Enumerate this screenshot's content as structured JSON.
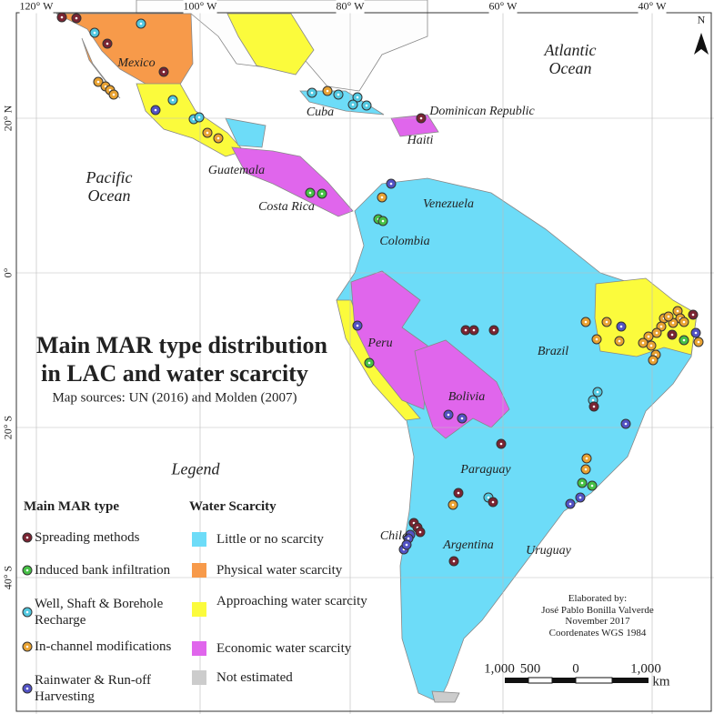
{
  "map": {
    "north": "N",
    "graticule_top": [
      "120° W",
      "100° W",
      "80° W",
      "60° W",
      "40° W"
    ],
    "graticule_left": [
      "20° N",
      "0°",
      "20° S",
      "40° S"
    ],
    "oceans": [
      "Atlantic Ocean",
      "Pacific Ocean"
    ],
    "places": [
      "Mexico",
      "Cuba",
      "Dominican Republic",
      "Haiti",
      "Guatemala",
      "Costa Rica",
      "Venezuela",
      "Colombia",
      "Peru",
      "Brazil",
      "Bolivia",
      "Paraguay",
      "Chile",
      "Argentina",
      "Uruguay"
    ]
  },
  "title": {
    "lines": [
      "Main MAR type distribution",
      "in LAC and water scarcity"
    ],
    "subtitle": "Map sources: UN (2016) and Molden (2007)"
  },
  "legend": {
    "title": "Legend",
    "mar_heading": "Main MAR type",
    "mar_types": [
      {
        "label": "Spreading methods",
        "color": "#7a2432"
      },
      {
        "label": "Induced bank infiltration",
        "color": "#46c046"
      },
      {
        "label": "Well, Shaft & Borehole Recharge",
        "color": "#52c8e0"
      },
      {
        "label": "In-channel modifications",
        "color": "#e8a232"
      },
      {
        "label": "Rainwater & Run-off Harvesting",
        "color": "#5252c4"
      }
    ],
    "scarcity_heading": "Water Scarcity",
    "scarcity": [
      {
        "label": "Little or no scarcity",
        "color": "#6ddcf8"
      },
      {
        "label": "Physical water scarcity",
        "color": "#f79a4a"
      },
      {
        "label": "Approaching water scarcity",
        "color": "#fbfb3c"
      },
      {
        "label": "Economic water scarcity",
        "color": "#e066ec"
      },
      {
        "label": "Not estimated",
        "color": "#cccccc"
      }
    ]
  },
  "credits": [
    "Elaborated by:",
    "José Pablo Bonilla Valverde",
    "November 2017",
    "Coordenates WGS 1984"
  ],
  "scale": {
    "labels": [
      "1,000",
      "500",
      "0",
      "1,000"
    ],
    "unit": "km"
  }
}
